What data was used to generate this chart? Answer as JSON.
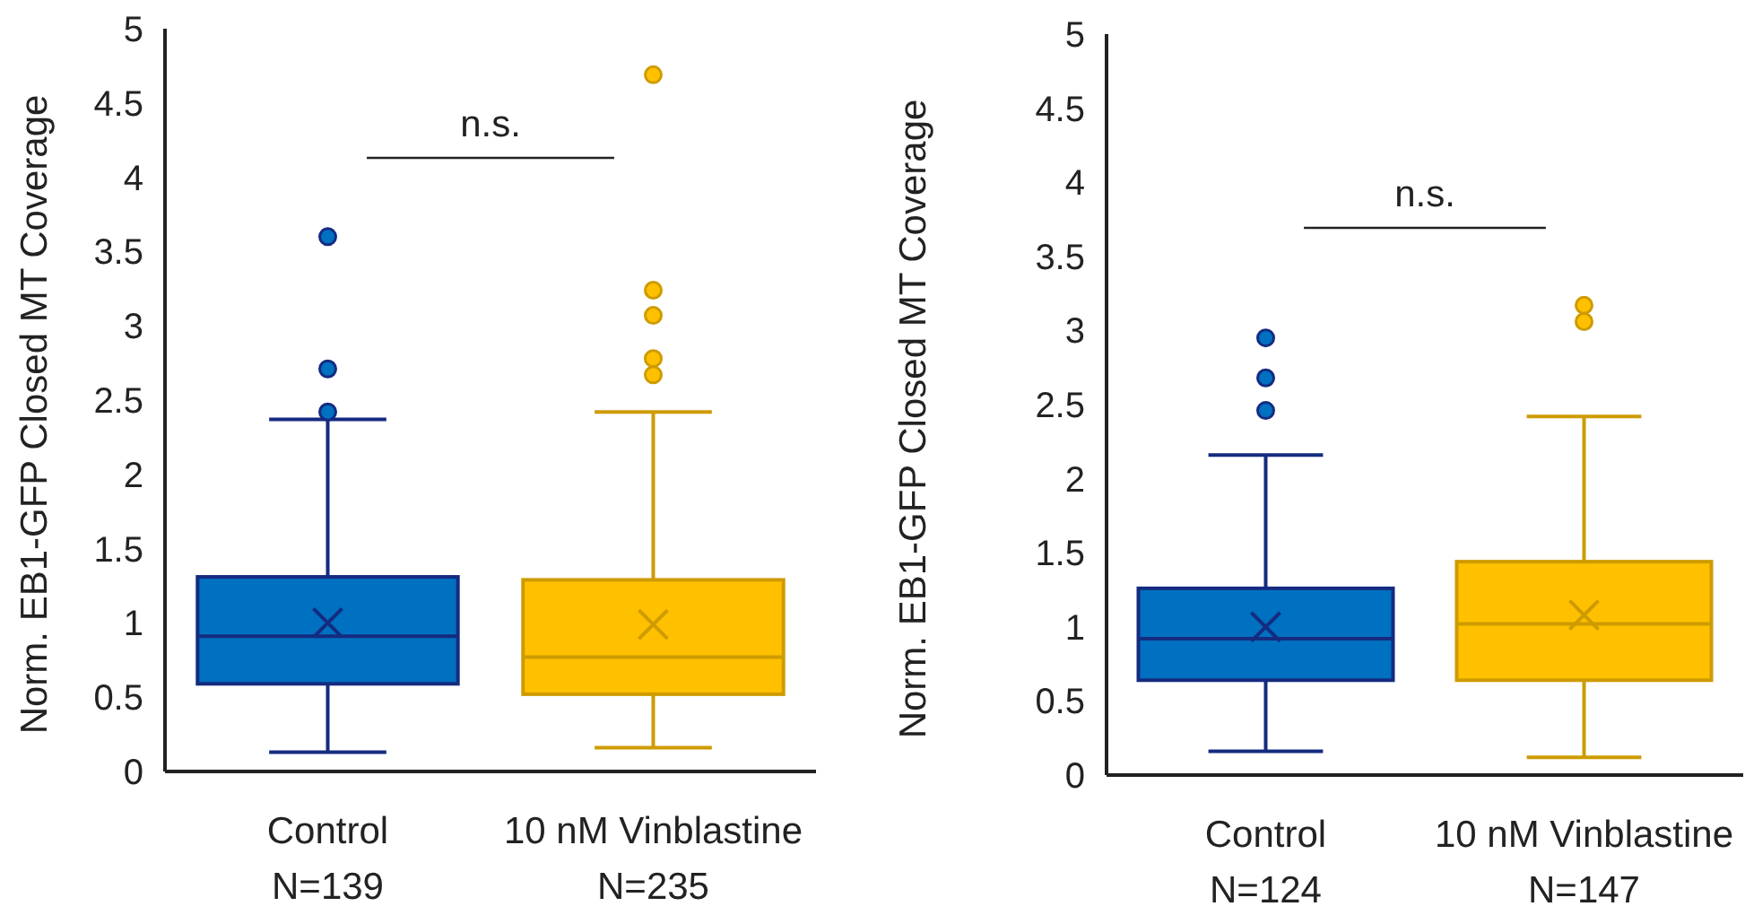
{
  "chart_data": [
    {
      "type": "box",
      "ylabel": "Norm. EB1-GFP Closed MT Coverage",
      "categories": [
        "Control\nN=139",
        "10 nM Vinblastine\nN=235"
      ],
      "colors": [
        "#0070c0",
        "#ffc000"
      ],
      "ylim": [
        0,
        5
      ],
      "yticks": [
        0,
        0.5,
        1,
        1.5,
        2,
        2.5,
        3,
        3.5,
        4,
        4.5,
        5
      ],
      "grid": false,
      "boxes": [
        {
          "low": 0.13,
          "q1": 0.59,
          "median": 0.91,
          "q3": 1.31,
          "high": 2.37,
          "mean": 1.0,
          "outliers": [
            2.42,
            2.71,
            3.6
          ]
        },
        {
          "low": 0.16,
          "q1": 0.52,
          "median": 0.77,
          "q3": 1.29,
          "high": 2.42,
          "mean": 0.99,
          "outliers": [
            2.67,
            2.78,
            3.07,
            3.24,
            4.69
          ]
        }
      ],
      "annotations": [
        "n.s."
      ]
    },
    {
      "type": "box",
      "ylabel": "Norm. EB1-GFP Closed MT Coverage",
      "categories": [
        "Control\nN=124",
        "10 nM Vinblastine\nN=147"
      ],
      "colors": [
        "#0070c0",
        "#ffc000"
      ],
      "ylim": [
        0,
        5
      ],
      "yticks": [
        0,
        0.5,
        1,
        1.5,
        2,
        2.5,
        3,
        3.5,
        4,
        4.5,
        5
      ],
      "grid": false,
      "boxes": [
        {
          "low": 0.16,
          "q1": 0.64,
          "median": 0.92,
          "q3": 1.26,
          "high": 2.16,
          "mean": 1.0,
          "outliers": [
            2.46,
            2.68,
            2.95
          ]
        },
        {
          "low": 0.12,
          "q1": 0.64,
          "median": 1.02,
          "q3": 1.44,
          "high": 2.42,
          "mean": 1.08,
          "outliers": [
            3.06,
            3.17
          ]
        }
      ],
      "annotations": [
        "n.s."
      ]
    }
  ]
}
